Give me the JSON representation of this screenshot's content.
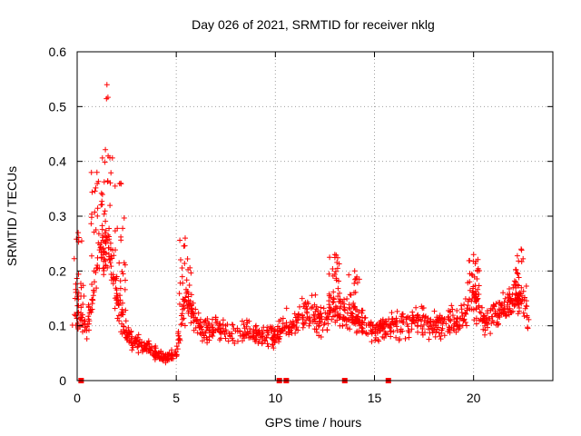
{
  "chart_data": {
    "type": "scatter",
    "title": "Day 026 of 2021, SRMTID for receiver nklg",
    "xlabel": "GPS time / hours",
    "ylabel": "SRMTID / TECUs",
    "xlim": [
      0,
      24
    ],
    "ylim": [
      0,
      0.6
    ],
    "xticks": [
      0,
      5,
      10,
      15,
      20
    ],
    "xtick_labels": [
      "0",
      "5",
      "10",
      "15",
      "20"
    ],
    "yticks": [
      0,
      0.1,
      0.2,
      0.3,
      0.4,
      0.5,
      0.6
    ],
    "ytick_labels": [
      "0",
      "0.1",
      "0.2",
      "0.3",
      "0.4",
      "0.5",
      "0.6"
    ],
    "grid": true,
    "marker": "+",
    "color": "#ff0000",
    "envelope_hours": [
      0,
      0.5,
      1,
      1.5,
      2,
      2.5,
      3,
      3.5,
      4,
      4.5,
      5,
      5.5,
      6,
      6.5,
      7,
      7.5,
      8,
      8.5,
      9,
      9.5,
      10,
      10.5,
      11,
      11.5,
      12,
      12.5,
      13,
      13.5,
      14,
      14.5,
      15,
      15.5,
      16,
      16.5,
      17,
      17.5,
      18,
      18.5,
      19,
      19.5,
      20,
      20.5,
      21,
      21.5,
      22,
      22.5,
      22.8
    ],
    "envelope_values": [
      0.12,
      0.1,
      0.2,
      0.25,
      0.15,
      0.08,
      0.07,
      0.06,
      0.05,
      0.04,
      0.05,
      0.15,
      0.1,
      0.09,
      0.1,
      0.09,
      0.08,
      0.09,
      0.085,
      0.08,
      0.08,
      0.1,
      0.11,
      0.12,
      0.12,
      0.11,
      0.13,
      0.12,
      0.11,
      0.1,
      0.09,
      0.1,
      0.1,
      0.1,
      0.11,
      0.11,
      0.1,
      0.1,
      0.11,
      0.12,
      0.15,
      0.11,
      0.12,
      0.13,
      0.15,
      0.14,
      0.1
    ],
    "peaks": [
      {
        "x": 0.05,
        "y": 0.27
      },
      {
        "x": 1.0,
        "y": 0.38
      },
      {
        "x": 1.5,
        "y": 0.54
      },
      {
        "x": 2.2,
        "y": 0.36
      },
      {
        "x": 5.45,
        "y": 0.26
      },
      {
        "x": 13.0,
        "y": 0.23
      },
      {
        "x": 14.0,
        "y": 0.2
      },
      {
        "x": 20.0,
        "y": 0.23
      },
      {
        "x": 22.4,
        "y": 0.24
      }
    ],
    "zero_markers": [
      0.2,
      10.2,
      10.55,
      13.5,
      15.7
    ],
    "num_points": 1200
  }
}
